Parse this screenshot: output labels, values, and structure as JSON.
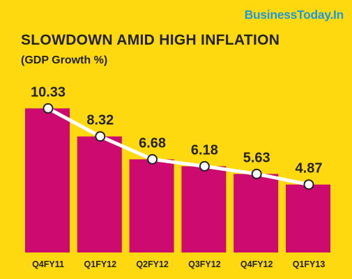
{
  "brand": "BusinessToday.In",
  "colors": {
    "background": "#FFD90F",
    "bar": "#CC0A6F",
    "line": "#FFFFFF",
    "brand": "#1F9AD6",
    "text": "#222222"
  },
  "chart_data": {
    "type": "bar",
    "title": "SLOWDOWN AMID HIGH INFLATION",
    "subtitle": "(GDP Growth %)",
    "categories": [
      "Q4FY11",
      "Q1FY12",
      "Q2FY12",
      "Q3FY12",
      "Q4FY12",
      "Q1FY13"
    ],
    "values": [
      10.33,
      8.32,
      6.68,
      6.18,
      5.63,
      4.87
    ],
    "value_labels": [
      "10.33",
      "8.32",
      "6.68",
      "6.18",
      "5.63",
      "4.87"
    ],
    "overlay_line": true,
    "xlabel": "",
    "ylabel": "",
    "grid": false,
    "legend": "none"
  }
}
